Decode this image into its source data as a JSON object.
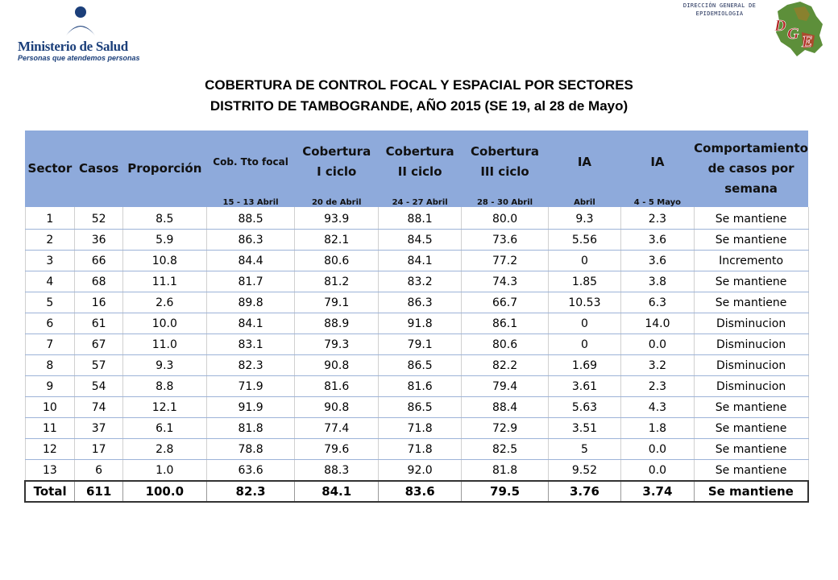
{
  "header": {
    "ministry_name": "Ministerio de Salud",
    "ministry_slogan": "Personas que atendemos personas",
    "dge_line1": "DIRECCIÓN GENERAL DE",
    "dge_line2": "EPIDEMIOLOGIA",
    "dge_logo_letters": "DGE"
  },
  "title": {
    "line1": "COBERTURA DE CONTROL FOCAL Y ESPACIAL POR SECTORES",
    "line2": "DISTRITO DE TAMBOGRANDE, AÑO 2015 (SE 19, al 28 de Mayo)"
  },
  "table": {
    "headers": {
      "sector": "Sector",
      "casos": "Casos",
      "proporcion": "Proporción",
      "cob_tto_focal": "Cob. Tto focal",
      "cob_i_1": "Cobertura",
      "cob_i_2": "I ciclo",
      "cob_ii_1": "Cobertura",
      "cob_ii_2": "II ciclo",
      "cob_iii_1": "Cobertura",
      "cob_iii_2": "III ciclo",
      "ia_1": "IA",
      "ia_2": "IA",
      "comp_1": "Comportamiento",
      "comp_2": "de casos por",
      "comp_3": "semana"
    },
    "subheaders": {
      "cob_tto_focal": "15 - 13 Abril",
      "cob_i": "20 de Abril",
      "cob_ii": "24 - 27 Abril",
      "cob_iii": "28 - 30 Abril",
      "ia_1": "Abril",
      "ia_2": "4 - 5 Mayo"
    },
    "rows": [
      [
        "1",
        "52",
        "8.5",
        "88.5",
        "93.9",
        "88.1",
        "80.0",
        "9.3",
        "2.3",
        "Se mantiene"
      ],
      [
        "2",
        "36",
        "5.9",
        "86.3",
        "82.1",
        "84.5",
        "73.6",
        "5.56",
        "3.6",
        "Se mantiene"
      ],
      [
        "3",
        "66",
        "10.8",
        "84.4",
        "80.6",
        "84.1",
        "77.2",
        "0",
        "3.6",
        "Incremento"
      ],
      [
        "4",
        "68",
        "11.1",
        "81.7",
        "81.2",
        "83.2",
        "74.3",
        "1.85",
        "3.8",
        "Se mantiene"
      ],
      [
        "5",
        "16",
        "2.6",
        "89.8",
        "79.1",
        "86.3",
        "66.7",
        "10.53",
        "6.3",
        "Se mantiene"
      ],
      [
        "6",
        "61",
        "10.0",
        "84.1",
        "88.9",
        "91.8",
        "86.1",
        "0",
        "14.0",
        "Disminucion"
      ],
      [
        "7",
        "67",
        "11.0",
        "83.1",
        "79.3",
        "79.1",
        "80.6",
        "0",
        "0.0",
        "Disminucion"
      ],
      [
        "8",
        "57",
        "9.3",
        "82.3",
        "90.8",
        "86.5",
        "82.2",
        "1.69",
        "3.2",
        "Disminucion"
      ],
      [
        "9",
        "54",
        "8.8",
        "71.9",
        "81.6",
        "81.6",
        "79.4",
        "3.61",
        "2.3",
        "Disminucion"
      ],
      [
        "10",
        "74",
        "12.1",
        "91.9",
        "90.8",
        "86.5",
        "88.4",
        "5.63",
        "4.3",
        "Se mantiene"
      ],
      [
        "11",
        "37",
        "6.1",
        "81.8",
        "77.4",
        "71.8",
        "72.9",
        "3.51",
        "1.8",
        "Se mantiene"
      ],
      [
        "12",
        "17",
        "2.8",
        "78.8",
        "79.6",
        "71.8",
        "82.5",
        "5",
        "0.0",
        "Se mantiene"
      ],
      [
        "13",
        "6",
        "1.0",
        "63.6",
        "88.3",
        "92.0",
        "81.8",
        "9.52",
        "0.0",
        "Se mantiene"
      ]
    ],
    "total": [
      "Total",
      "611",
      "100.0",
      "82.3",
      "84.1",
      "83.6",
      "79.5",
      "3.76",
      "3.74",
      "Se mantiene"
    ]
  },
  "colors": {
    "header_bg": "#8eaadb",
    "minsa_blue": "#1b3f7a"
  }
}
